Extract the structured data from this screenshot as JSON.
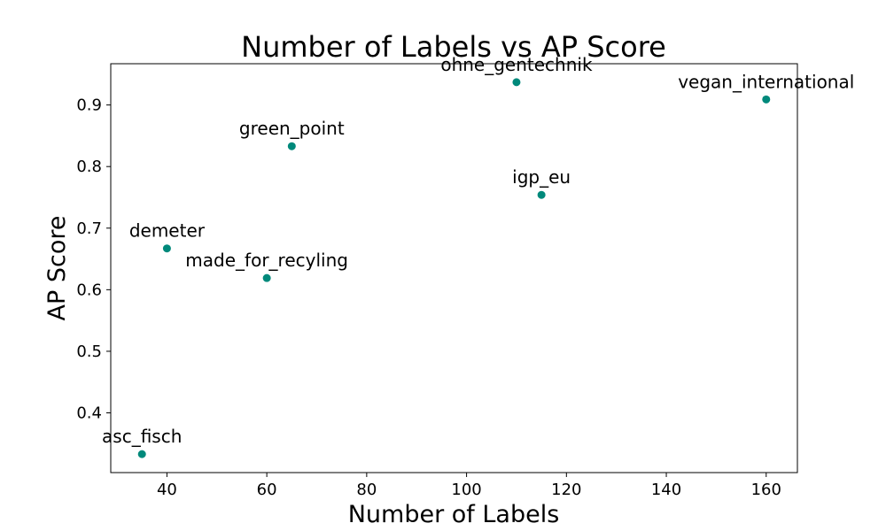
{
  "chart_data": {
    "type": "scatter",
    "title": "Number of Labels vs AP Score",
    "xlabel": "Number of Labels",
    "ylabel": "AP Score",
    "xlim": [
      28.75,
      166.25
    ],
    "ylim": [
      0.303,
      0.967
    ],
    "xticks": [
      40,
      60,
      80,
      100,
      120,
      140,
      160
    ],
    "yticks": [
      0.4,
      0.5,
      0.6,
      0.7,
      0.8,
      0.9
    ],
    "grid": false,
    "marker_color": "#00897b",
    "points": [
      {
        "label": "asc_fisch",
        "x": 35,
        "y": 0.333
      },
      {
        "label": "demeter",
        "x": 40,
        "y": 0.667
      },
      {
        "label": "made_for_recyling",
        "x": 60,
        "y": 0.619
      },
      {
        "label": "green_point",
        "x": 65,
        "y": 0.833
      },
      {
        "label": "ohne_gentechnik",
        "x": 110,
        "y": 0.937
      },
      {
        "label": "igp_eu",
        "x": 115,
        "y": 0.754
      },
      {
        "label": "vegan_international",
        "x": 160,
        "y": 0.909
      }
    ]
  }
}
